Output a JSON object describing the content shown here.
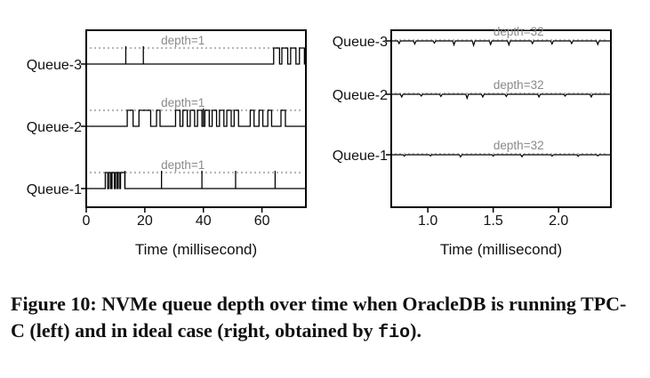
{
  "chart_data": [
    {
      "type": "line",
      "xlabel": "Time (millisecond)",
      "xlim": [
        0,
        75
      ],
      "xticks": [
        0,
        20,
        40,
        60
      ],
      "xtick_labels": [
        "0",
        "20",
        "40",
        "60"
      ],
      "y_categories": [
        "Queue-1",
        "Queue-2",
        "Queue-3"
      ],
      "reference_line_label": "depth=1",
      "series": [
        {
          "name": "Queue-1",
          "busy_intervals_ms": [
            [
              6.5,
              7.3
            ],
            [
              7.8,
              8.4
            ],
            [
              8.8,
              9.6
            ],
            [
              10.0,
              10.6
            ],
            [
              10.9,
              11.5
            ],
            [
              11.7,
              13.2
            ]
          ],
          "spikes_ms": [
            13.2,
            25.7,
            39.5,
            51.0,
            64.5
          ]
        },
        {
          "name": "Queue-2",
          "busy_intervals_ms": [
            [
              14.0,
              16.0
            ],
            [
              18.0,
              22.0
            ],
            [
              24.0,
              25.2
            ],
            [
              30.5,
              32.0
            ],
            [
              33.0,
              34.5
            ],
            [
              35.5,
              37.0
            ],
            [
              38.0,
              39.5
            ],
            [
              40.5,
              42.0
            ],
            [
              43.0,
              44.5
            ],
            [
              45.5,
              47.0
            ],
            [
              48.0,
              49.5
            ],
            [
              50.5,
              52.0
            ],
            [
              56.0,
              57.3
            ],
            [
              59.0,
              60.3
            ],
            [
              62.0,
              63.3
            ],
            [
              66.5,
              68.0
            ]
          ],
          "spikes_ms": [
            40.0
          ]
        },
        {
          "name": "Queue-3",
          "busy_intervals_ms": [
            [
              64.0,
              66.0
            ],
            [
              66.8,
              68.8
            ],
            [
              69.8,
              71.6
            ],
            [
              72.8,
              74.5
            ]
          ],
          "spikes_ms": [
            13.5,
            19.5
          ]
        }
      ]
    },
    {
      "type": "line",
      "xlabel": "Time (millisecond)",
      "xlim": [
        0.72,
        2.4
      ],
      "xticks": [
        1.0,
        1.5,
        2.0
      ],
      "xtick_labels": [
        "1.0",
        "1.5",
        "2.0"
      ],
      "y_categories": [
        "Queue-1",
        "Queue-2",
        "Queue-3"
      ],
      "reference_line_label": "depth=32",
      "series": [
        {
          "name": "Queue-1",
          "mean_depth": 32,
          "dips": [
            [
              0.82,
              0.3
            ],
            [
              1.02,
              0.25
            ],
            [
              1.25,
              0.5
            ],
            [
              1.5,
              0.3
            ],
            [
              1.72,
              0.45
            ],
            [
              1.95,
              0.3
            ],
            [
              2.15,
              0.35
            ],
            [
              2.3,
              0.25
            ]
          ]
        },
        {
          "name": "Queue-2",
          "mean_depth": 32,
          "dips": [
            [
              0.8,
              0.6
            ],
            [
              0.95,
              0.4
            ],
            [
              1.1,
              0.5
            ],
            [
              1.3,
              0.9
            ],
            [
              1.42,
              0.6
            ],
            [
              1.6,
              0.5
            ],
            [
              1.85,
              0.6
            ],
            [
              2.05,
              0.4
            ],
            [
              2.25,
              0.6
            ]
          ]
        },
        {
          "name": "Queue-3",
          "mean_depth": 32,
          "dips": [
            [
              0.78,
              0.6
            ],
            [
              0.9,
              0.7
            ],
            [
              1.05,
              0.5
            ],
            [
              1.2,
              0.9
            ],
            [
              1.35,
              1.0
            ],
            [
              1.48,
              0.8
            ],
            [
              1.62,
              0.9
            ],
            [
              1.8,
              0.6
            ],
            [
              1.95,
              0.7
            ],
            [
              2.1,
              0.6
            ],
            [
              2.3,
              0.8
            ]
          ]
        }
      ]
    }
  ],
  "caption": {
    "label": "Figure 10:",
    "text_before": " NVMe queue depth over time when OracleDB is running TPC-C (left) and in ideal case (right, obtained by ",
    "code": "fio",
    "text_after": ")."
  }
}
